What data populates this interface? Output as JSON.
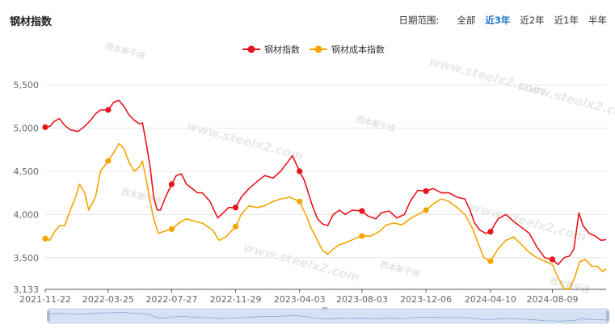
{
  "title": "钢材指数",
  "range": {
    "label": "日期范围:",
    "options": [
      "全部",
      "近3年",
      "近2年",
      "近1年",
      "半年"
    ],
    "active": "近3年"
  },
  "colors": {
    "series1": "#e8141e",
    "series2": "#f5a500",
    "grid": "#e6e6e6",
    "slider": "#d6e1f3",
    "slider_line": "#8fa9d8"
  },
  "watermark": {
    "url": "www.steelx2.com",
    "brand": "西本新干线"
  },
  "chart_data": {
    "type": "line",
    "title": "",
    "legend": [
      "钢材指数",
      "钢材成本指数"
    ],
    "legend_position": "top-center",
    "grid": true,
    "ylim": [
      3133,
      5500
    ],
    "yticks": [
      "5,500",
      "5,000",
      "4,500",
      "4,000",
      "3,500",
      "3,133"
    ],
    "ytick_values": [
      5500,
      5000,
      4500,
      4000,
      3500,
      3133
    ],
    "xticks": [
      "2021-11-22",
      "2022-03-25",
      "2022-07-27",
      "2022-11-29",
      "2023-04-03",
      "2023-08-03",
      "2023-12-06",
      "2024-04-10",
      "2024-08-09"
    ],
    "x_domain": [
      "2021-11-22",
      "2024-11-22"
    ],
    "series": [
      {
        "name": "钢材指数",
        "points": [
          [
            "2021-11-22",
            5010
          ],
          [
            "2021-12-01",
            5020
          ],
          [
            "2021-12-10",
            5080
          ],
          [
            "2021-12-20",
            5110
          ],
          [
            "2021-12-30",
            5030
          ],
          [
            "2022-01-10",
            4980
          ],
          [
            "2022-01-25",
            4960
          ],
          [
            "2022-02-07",
            5020
          ],
          [
            "2022-02-20",
            5100
          ],
          [
            "2022-03-01",
            5170
          ],
          [
            "2022-03-10",
            5210
          ],
          [
            "2022-03-25",
            5210
          ],
          [
            "2022-04-05",
            5300
          ],
          [
            "2022-04-15",
            5320
          ],
          [
            "2022-04-25",
            5250
          ],
          [
            "2022-05-05",
            5150
          ],
          [
            "2022-05-15",
            5090
          ],
          [
            "2022-05-25",
            5050
          ],
          [
            "2022-05-31",
            5060
          ],
          [
            "2022-06-08",
            4800
          ],
          [
            "2022-06-15",
            4550
          ],
          [
            "2022-06-22",
            4200
          ],
          [
            "2022-06-29",
            4050
          ],
          [
            "2022-07-05",
            4050
          ],
          [
            "2022-07-15",
            4200
          ],
          [
            "2022-07-27",
            4350
          ],
          [
            "2022-08-05",
            4450
          ],
          [
            "2022-08-15",
            4470
          ],
          [
            "2022-08-25",
            4350
          ],
          [
            "2022-09-05",
            4300
          ],
          [
            "2022-09-15",
            4250
          ],
          [
            "2022-09-25",
            4250
          ],
          [
            "2022-10-10",
            4150
          ],
          [
            "2022-10-25",
            3960
          ],
          [
            "2022-11-05",
            4020
          ],
          [
            "2022-11-15",
            4080
          ],
          [
            "2022-11-29",
            4080
          ],
          [
            "2022-12-10",
            4200
          ],
          [
            "2022-12-25",
            4300
          ],
          [
            "2023-01-10",
            4380
          ],
          [
            "2023-01-25",
            4450
          ],
          [
            "2023-02-10",
            4420
          ],
          [
            "2023-02-25",
            4500
          ],
          [
            "2023-03-10",
            4600
          ],
          [
            "2023-03-20",
            4680
          ],
          [
            "2023-04-03",
            4500
          ],
          [
            "2023-04-12",
            4400
          ],
          [
            "2023-04-20",
            4250
          ],
          [
            "2023-04-28",
            4100
          ],
          [
            "2023-05-08",
            3950
          ],
          [
            "2023-05-18",
            3890
          ],
          [
            "2023-05-28",
            3870
          ],
          [
            "2023-06-08",
            4000
          ],
          [
            "2023-06-20",
            4050
          ],
          [
            "2023-07-01",
            4000
          ],
          [
            "2023-07-15",
            4050
          ],
          [
            "2023-08-03",
            4040
          ],
          [
            "2023-08-15",
            3980
          ],
          [
            "2023-08-30",
            3950
          ],
          [
            "2023-09-10",
            4020
          ],
          [
            "2023-09-25",
            4040
          ],
          [
            "2023-10-10",
            3960
          ],
          [
            "2023-10-25",
            4000
          ],
          [
            "2023-11-05",
            4150
          ],
          [
            "2023-11-20",
            4280
          ],
          [
            "2023-12-06",
            4270
          ],
          [
            "2023-12-20",
            4300
          ],
          [
            "2024-01-05",
            4250
          ],
          [
            "2024-01-20",
            4250
          ],
          [
            "2024-02-05",
            4200
          ],
          [
            "2024-02-20",
            4180
          ],
          [
            "2024-03-01",
            4050
          ],
          [
            "2024-03-10",
            3900
          ],
          [
            "2024-03-20",
            3820
          ],
          [
            "2024-04-01",
            3780
          ],
          [
            "2024-04-10",
            3800
          ],
          [
            "2024-04-25",
            3950
          ],
          [
            "2024-05-10",
            4000
          ],
          [
            "2024-05-25",
            3920
          ],
          [
            "2024-06-10",
            3850
          ],
          [
            "2024-06-25",
            3780
          ],
          [
            "2024-07-10",
            3620
          ],
          [
            "2024-07-25",
            3500
          ],
          [
            "2024-08-09",
            3480
          ],
          [
            "2024-08-20",
            3420
          ],
          [
            "2024-09-01",
            3500
          ],
          [
            "2024-09-12",
            3520
          ],
          [
            "2024-09-20",
            3600
          ],
          [
            "2024-09-30",
            4020
          ],
          [
            "2024-10-08",
            3870
          ],
          [
            "2024-10-20",
            3780
          ],
          [
            "2024-11-01",
            3750
          ],
          [
            "2024-11-12",
            3700
          ],
          [
            "2024-11-22",
            3710
          ]
        ],
        "markers": [
          "2021-11-22",
          "2022-03-25",
          "2022-07-27",
          "2022-11-29",
          "2023-04-03",
          "2023-08-03",
          "2023-12-06",
          "2024-04-10",
          "2024-08-09"
        ]
      },
      {
        "name": "钢材成本指数",
        "points": [
          [
            "2021-11-22",
            3720
          ],
          [
            "2021-12-01",
            3700
          ],
          [
            "2021-12-10",
            3800
          ],
          [
            "2021-12-20",
            3870
          ],
          [
            "2021-12-30",
            3870
          ],
          [
            "2022-01-10",
            4050
          ],
          [
            "2022-01-20",
            4200
          ],
          [
            "2022-01-28",
            4350
          ],
          [
            "2022-02-07",
            4250
          ],
          [
            "2022-02-15",
            4050
          ],
          [
            "2022-02-28",
            4200
          ],
          [
            "2022-03-10",
            4500
          ],
          [
            "2022-03-25",
            4620
          ],
          [
            "2022-04-05",
            4720
          ],
          [
            "2022-04-15",
            4820
          ],
          [
            "2022-04-25",
            4760
          ],
          [
            "2022-05-05",
            4600
          ],
          [
            "2022-05-15",
            4500
          ],
          [
            "2022-05-25",
            4550
          ],
          [
            "2022-05-31",
            4620
          ],
          [
            "2022-06-08",
            4380
          ],
          [
            "2022-06-15",
            4150
          ],
          [
            "2022-06-22",
            3950
          ],
          [
            "2022-07-01",
            3780
          ],
          [
            "2022-07-10",
            3800
          ],
          [
            "2022-07-20",
            3820
          ],
          [
            "2022-07-27",
            3830
          ],
          [
            "2022-08-10",
            3900
          ],
          [
            "2022-08-25",
            3950
          ],
          [
            "2022-09-10",
            3920
          ],
          [
            "2022-09-25",
            3900
          ],
          [
            "2022-10-15",
            3820
          ],
          [
            "2022-10-28",
            3700
          ],
          [
            "2022-11-10",
            3740
          ],
          [
            "2022-11-29",
            3860
          ],
          [
            "2022-12-10",
            4000
          ],
          [
            "2022-12-25",
            4100
          ],
          [
            "2023-01-10",
            4080
          ],
          [
            "2023-01-25",
            4100
          ],
          [
            "2023-02-10",
            4150
          ],
          [
            "2023-02-25",
            4180
          ],
          [
            "2023-03-15",
            4200
          ],
          [
            "2023-04-03",
            4150
          ],
          [
            "2023-04-15",
            4000
          ],
          [
            "2023-04-25",
            3850
          ],
          [
            "2023-05-08",
            3700
          ],
          [
            "2023-05-18",
            3580
          ],
          [
            "2023-05-28",
            3540
          ],
          [
            "2023-06-08",
            3600
          ],
          [
            "2023-06-20",
            3650
          ],
          [
            "2023-07-05",
            3680
          ],
          [
            "2023-07-20",
            3720
          ],
          [
            "2023-08-03",
            3750
          ],
          [
            "2023-08-20",
            3750
          ],
          [
            "2023-09-05",
            3800
          ],
          [
            "2023-09-20",
            3880
          ],
          [
            "2023-10-05",
            3900
          ],
          [
            "2023-10-20",
            3880
          ],
          [
            "2023-11-05",
            3950
          ],
          [
            "2023-11-20",
            4000
          ],
          [
            "2023-12-06",
            4050
          ],
          [
            "2023-12-20",
            4120
          ],
          [
            "2024-01-05",
            4180
          ],
          [
            "2024-01-20",
            4150
          ],
          [
            "2024-02-05",
            4080
          ],
          [
            "2024-02-20",
            4000
          ],
          [
            "2024-03-05",
            3850
          ],
          [
            "2024-03-15",
            3700
          ],
          [
            "2024-03-28",
            3500
          ],
          [
            "2024-04-10",
            3460
          ],
          [
            "2024-04-25",
            3600
          ],
          [
            "2024-05-10",
            3700
          ],
          [
            "2024-05-25",
            3740
          ],
          [
            "2024-06-10",
            3650
          ],
          [
            "2024-06-25",
            3560
          ],
          [
            "2024-07-10",
            3500
          ],
          [
            "2024-07-25",
            3460
          ],
          [
            "2024-08-09",
            3420
          ],
          [
            "2024-08-20",
            3270
          ],
          [
            "2024-09-01",
            3140
          ],
          [
            "2024-09-12",
            3140
          ],
          [
            "2024-09-22",
            3280
          ],
          [
            "2024-10-01",
            3450
          ],
          [
            "2024-10-12",
            3480
          ],
          [
            "2024-10-25",
            3400
          ],
          [
            "2024-11-05",
            3400
          ],
          [
            "2024-11-15",
            3340
          ],
          [
            "2024-11-22",
            3370
          ]
        ],
        "markers": [
          "2021-11-22",
          "2022-03-25",
          "2022-07-27",
          "2022-11-29",
          "2023-04-03",
          "2023-08-03",
          "2023-12-06",
          "2024-04-10"
        ]
      }
    ]
  }
}
